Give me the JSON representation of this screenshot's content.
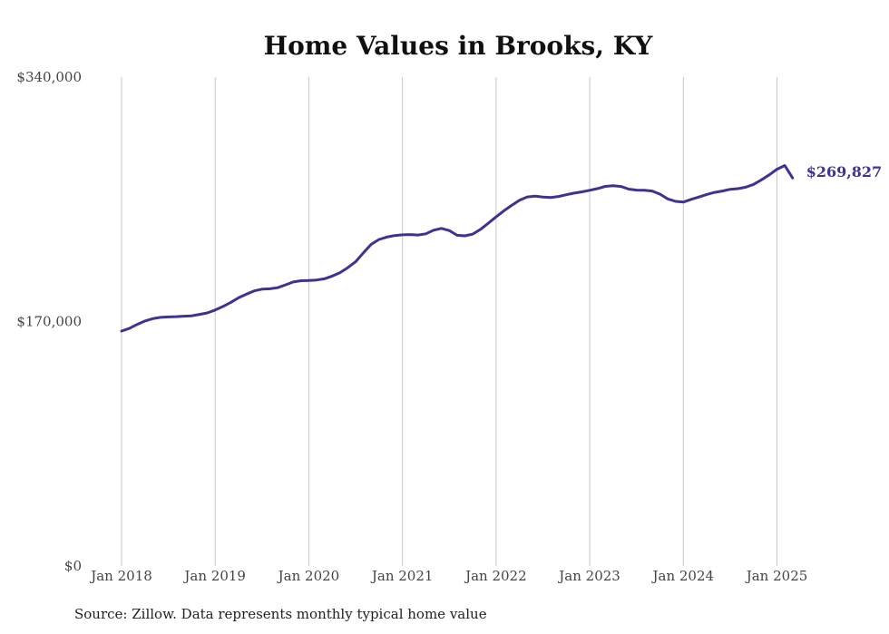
{
  "chart_data": {
    "type": "line",
    "title": "Home Values in Brooks, KY",
    "xlabel": "",
    "ylabel": "",
    "ylim": [
      0,
      340000
    ],
    "y_ticks": [
      0,
      170000,
      340000
    ],
    "y_tick_labels": [
      "$0",
      "$170,000",
      "$340,000"
    ],
    "x_ticks": [
      "Jan 2018",
      "Jan 2019",
      "Jan 2020",
      "Jan 2021",
      "Jan 2022",
      "Jan 2023",
      "Jan 2024",
      "Jan 2025"
    ],
    "x_tick_labels": [
      "Jan 2018",
      "Jan 2019",
      "Jan 2020",
      "Jan 2021",
      "Jan 2022",
      "Jan 2023",
      "Jan 2024",
      "Jan 2025"
    ],
    "grid": "vertical at each January",
    "series_color": "#3b3494",
    "end_label": "$269,827",
    "x": [
      "2018-01",
      "2018-02",
      "2018-03",
      "2018-04",
      "2018-05",
      "2018-06",
      "2018-07",
      "2018-08",
      "2018-09",
      "2018-10",
      "2018-11",
      "2018-12",
      "2019-01",
      "2019-02",
      "2019-03",
      "2019-04",
      "2019-05",
      "2019-06",
      "2019-07",
      "2019-08",
      "2019-09",
      "2019-10",
      "2019-11",
      "2019-12",
      "2020-01",
      "2020-02",
      "2020-03",
      "2020-04",
      "2020-05",
      "2020-06",
      "2020-07",
      "2020-08",
      "2020-09",
      "2020-10",
      "2020-11",
      "2020-12",
      "2021-01",
      "2021-02",
      "2021-03",
      "2021-04",
      "2021-05",
      "2021-06",
      "2021-07",
      "2021-08",
      "2021-09",
      "2021-10",
      "2021-11",
      "2021-12",
      "2022-01",
      "2022-02",
      "2022-03",
      "2022-04",
      "2022-05",
      "2022-06",
      "2022-07",
      "2022-08",
      "2022-09",
      "2022-10",
      "2022-11",
      "2022-12",
      "2023-01",
      "2023-02",
      "2023-03",
      "2023-04",
      "2023-05",
      "2023-06",
      "2023-07",
      "2023-08",
      "2023-09",
      "2023-10",
      "2023-11",
      "2023-12",
      "2024-01",
      "2024-02",
      "2024-03",
      "2024-04",
      "2024-05",
      "2024-06",
      "2024-07",
      "2024-08",
      "2024-09",
      "2024-10",
      "2024-11",
      "2024-12",
      "2025-01",
      "2025-02",
      "2025-03"
    ],
    "values": [
      163400,
      165200,
      168000,
      170400,
      172000,
      172900,
      173200,
      173400,
      173700,
      174000,
      175000,
      176000,
      178000,
      180500,
      183300,
      186500,
      189000,
      191300,
      192500,
      192800,
      193500,
      195500,
      197500,
      198400,
      198600,
      198900,
      199700,
      201600,
      204000,
      207500,
      211600,
      217800,
      223700,
      227100,
      228700,
      229800,
      230300,
      230500,
      230200,
      231000,
      233500,
      234800,
      233300,
      230000,
      229600,
      230800,
      234100,
      238400,
      242800,
      247000,
      250800,
      254400,
      256700,
      257200,
      256600,
      256300,
      257000,
      258200,
      259300,
      260200,
      261300,
      262500,
      264000,
      264500,
      263900,
      262100,
      261400,
      261300,
      260800,
      258600,
      255300,
      253600,
      253100,
      255000,
      256600,
      258400,
      259800,
      260800,
      262000,
      262400,
      263400,
      265400,
      268500,
      272000,
      275900,
      278500,
      269827
    ]
  },
  "source_text": "Source: Zillow. Data represents monthly typical home value"
}
